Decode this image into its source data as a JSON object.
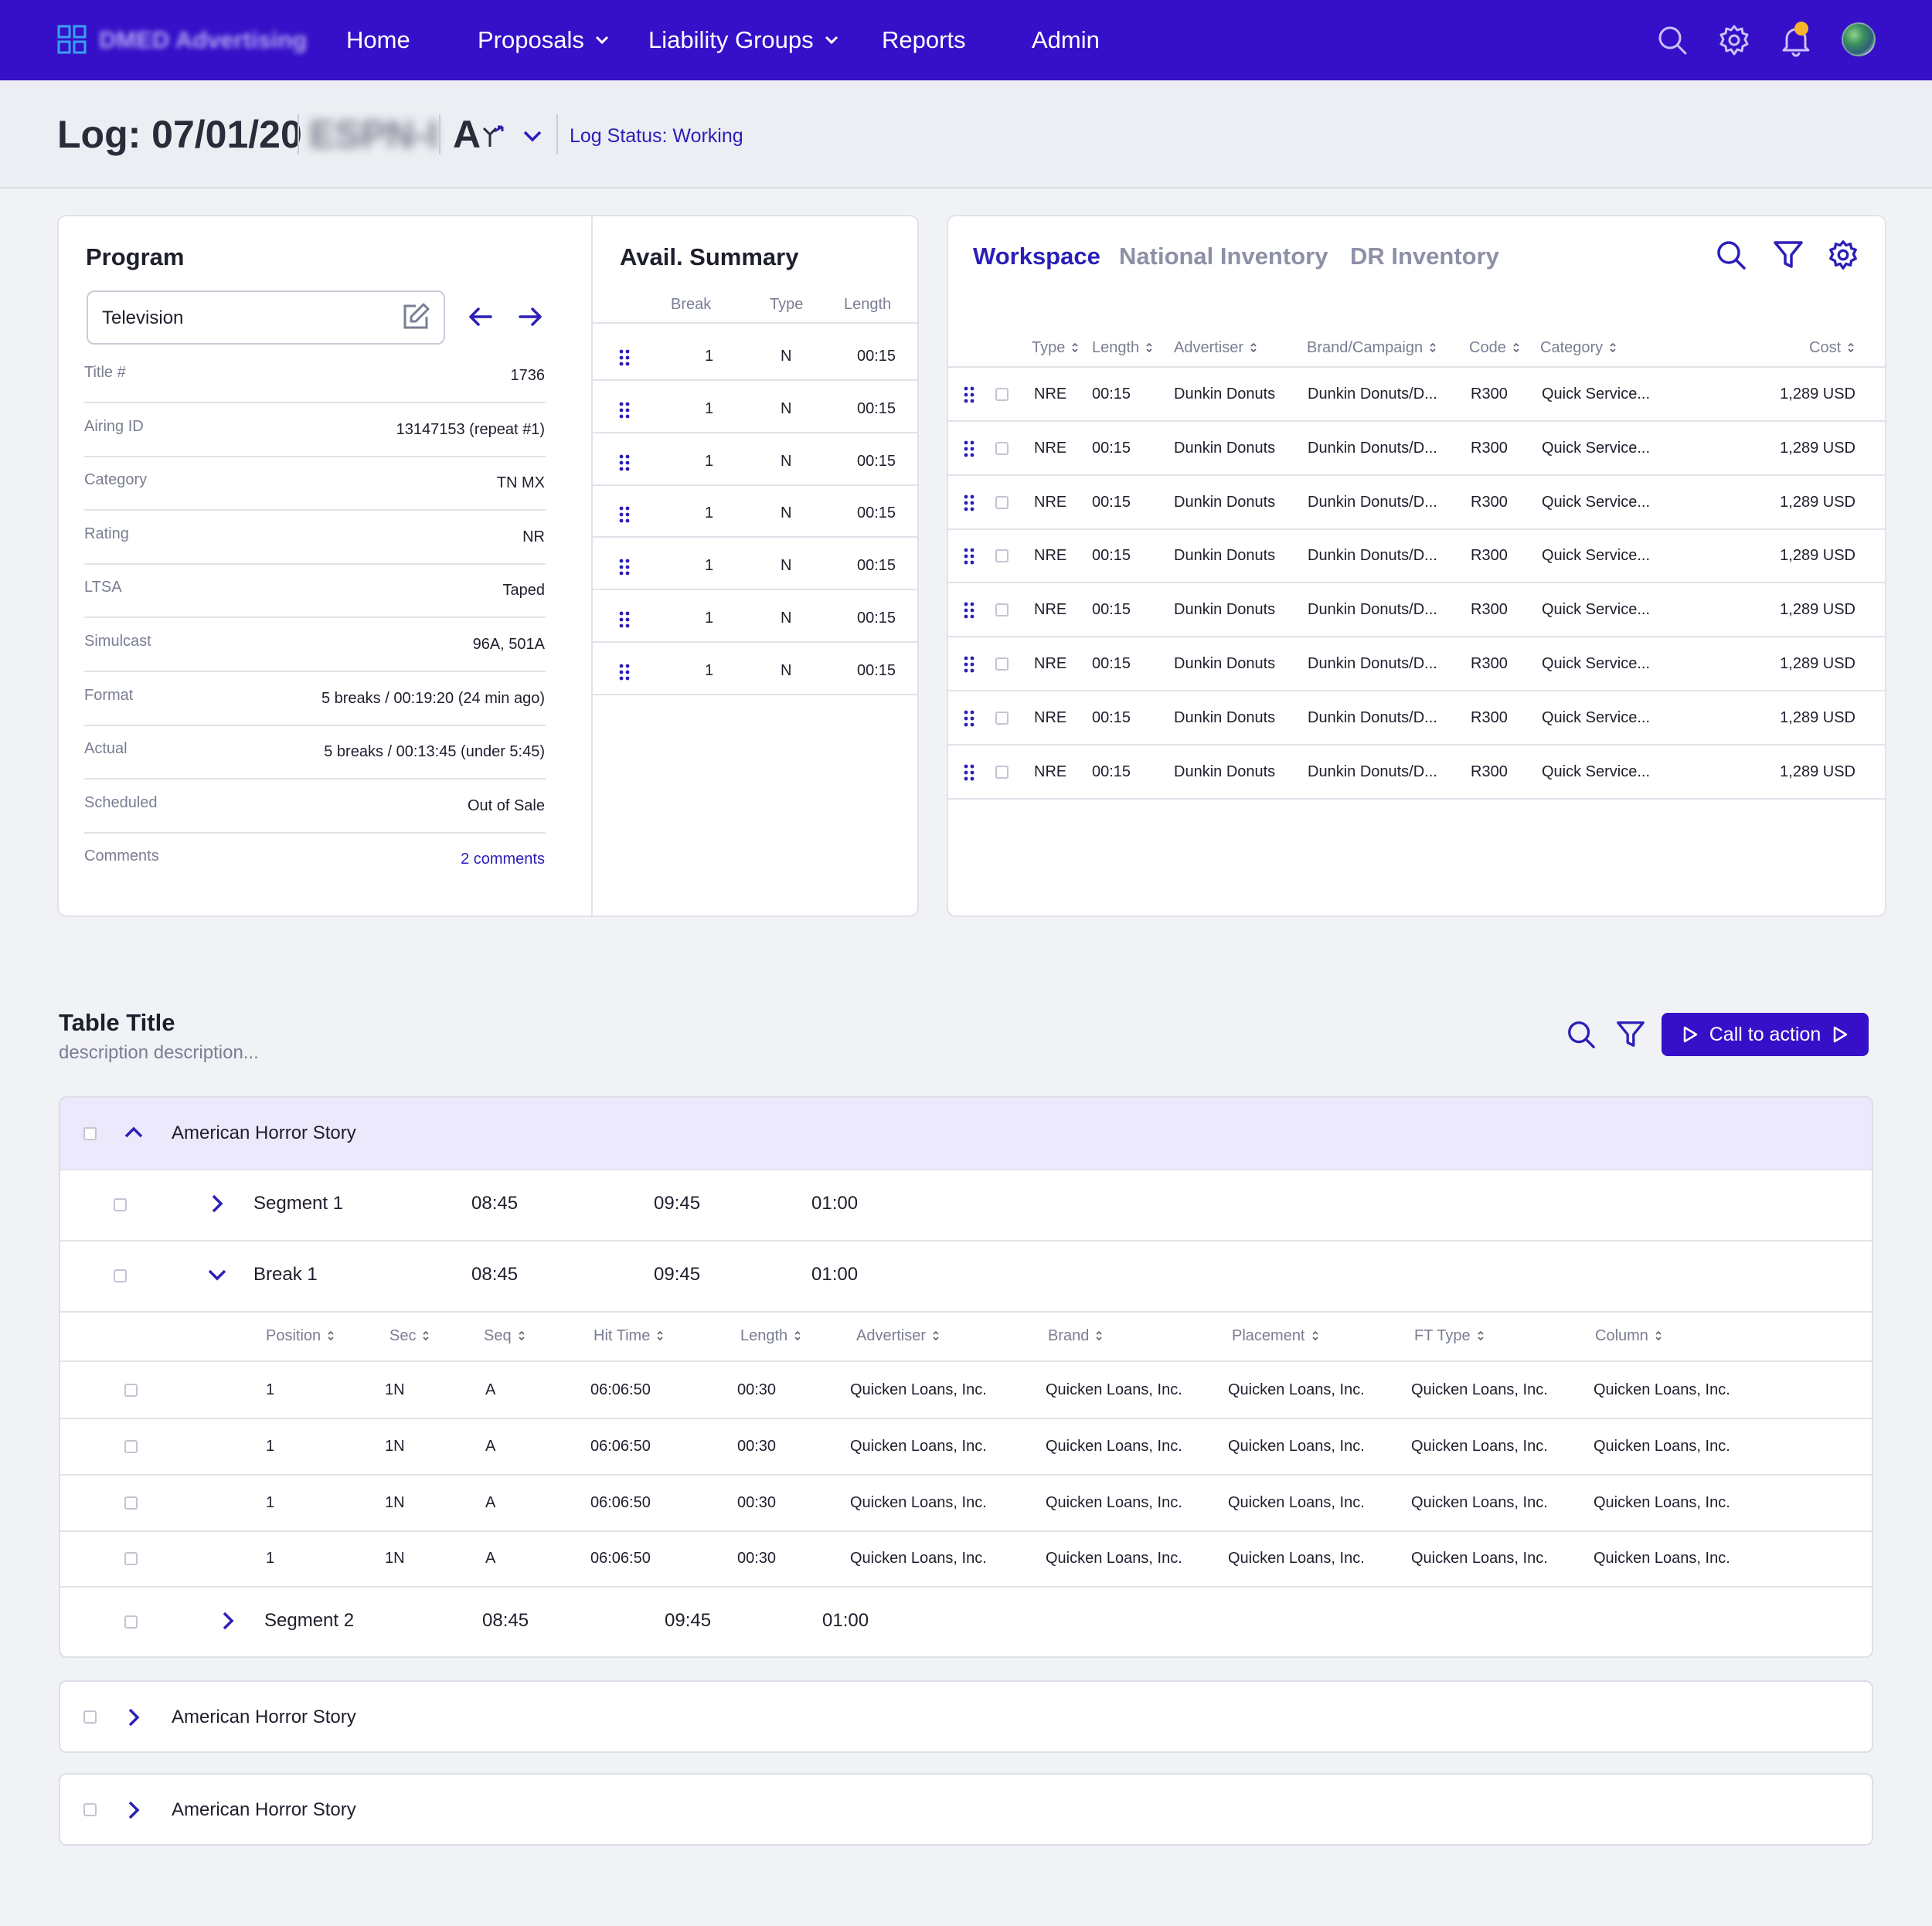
{
  "nav": {
    "brand": "DMED Advertising",
    "items": [
      {
        "label": "Home"
      },
      {
        "label": "Proposals"
      },
      {
        "label": "Liability Groups"
      },
      {
        "label": "Reports"
      },
      {
        "label": "Admin"
      }
    ],
    "icons": [
      "search-icon",
      "gear-icon",
      "bell-icon",
      "avatar"
    ],
    "notification_dot_color": "#f7b52c"
  },
  "log": {
    "title": "Log: 07/01/20",
    "station": "ESPN-I",
    "lang": "A",
    "status": "Log Status: Working"
  },
  "program": {
    "title": "Program",
    "input_value": "Television",
    "rows": [
      {
        "label": "Title #",
        "value": "1736"
      },
      {
        "label": "Airing ID",
        "value": "13147153 (repeat #1)"
      },
      {
        "label": "Category",
        "value": "TN MX"
      },
      {
        "label": "Rating",
        "value": "NR"
      },
      {
        "label": "LTSA",
        "value": "Taped"
      },
      {
        "label": "Simulcast",
        "value": "96A, 501A"
      },
      {
        "label": "Format",
        "value": "5 breaks / 00:19:20 (24 min ago)"
      },
      {
        "label": "Actual",
        "value": "5 breaks / 00:13:45 (under 5:45)"
      },
      {
        "label": "Scheduled",
        "value": "Out of Sale"
      },
      {
        "label": "Comments",
        "value": "2 comments"
      }
    ]
  },
  "avail": {
    "title": "Avail. Summary",
    "headers": [
      "Break",
      "Type",
      "Length"
    ],
    "rows": [
      {
        "break": "1",
        "type": "N",
        "length": "00:15"
      },
      {
        "break": "1",
        "type": "N",
        "length": "00:15"
      },
      {
        "break": "1",
        "type": "N",
        "length": "00:15"
      },
      {
        "break": "1",
        "type": "N",
        "length": "00:15"
      },
      {
        "break": "1",
        "type": "N",
        "length": "00:15"
      },
      {
        "break": "1",
        "type": "N",
        "length": "00:15"
      },
      {
        "break": "1",
        "type": "N",
        "length": "00:15"
      }
    ]
  },
  "workspace": {
    "tabs": [
      "Workspace",
      "National Inventory",
      "DR Inventory"
    ],
    "active_tab": "Workspace",
    "headers": [
      "Type",
      "Length",
      "Advertiser",
      "Brand/Campaign",
      "Code",
      "Category",
      "Cost"
    ],
    "rows": [
      {
        "type": "NRE",
        "length": "00:15",
        "advertiser": "Dunkin Donuts",
        "brand": "Dunkin Donuts/D...",
        "code": "R300",
        "category": "Quick Service...",
        "cost": "1,289 USD"
      },
      {
        "type": "NRE",
        "length": "00:15",
        "advertiser": "Dunkin Donuts",
        "brand": "Dunkin Donuts/D...",
        "code": "R300",
        "category": "Quick Service...",
        "cost": "1,289 USD"
      },
      {
        "type": "NRE",
        "length": "00:15",
        "advertiser": "Dunkin Donuts",
        "brand": "Dunkin Donuts/D...",
        "code": "R300",
        "category": "Quick Service...",
        "cost": "1,289 USD"
      },
      {
        "type": "NRE",
        "length": "00:15",
        "advertiser": "Dunkin Donuts",
        "brand": "Dunkin Donuts/D...",
        "code": "R300",
        "category": "Quick Service...",
        "cost": "1,289 USD"
      },
      {
        "type": "NRE",
        "length": "00:15",
        "advertiser": "Dunkin Donuts",
        "brand": "Dunkin Donuts/D...",
        "code": "R300",
        "category": "Quick Service...",
        "cost": "1,289 USD"
      },
      {
        "type": "NRE",
        "length": "00:15",
        "advertiser": "Dunkin Donuts",
        "brand": "Dunkin Donuts/D...",
        "code": "R300",
        "category": "Quick Service...",
        "cost": "1,289 USD"
      },
      {
        "type": "NRE",
        "length": "00:15",
        "advertiser": "Dunkin Donuts",
        "brand": "Dunkin Donuts/D...",
        "code": "R300",
        "category": "Quick Service...",
        "cost": "1,289 USD"
      },
      {
        "type": "NRE",
        "length": "00:15",
        "advertiser": "Dunkin Donuts",
        "brand": "Dunkin Donuts/D...",
        "code": "R300",
        "category": "Quick Service...",
        "cost": "1,289 USD"
      }
    ]
  },
  "table": {
    "title": "Table Title",
    "description": "description description...",
    "cta": "Call to action",
    "groups": [
      {
        "name": "American Horror Story",
        "expanded": true,
        "segment1": {
          "name": "Segment 1",
          "start": "08:45",
          "end": "09:45",
          "length": "01:00"
        },
        "break1": {
          "name": "Break 1",
          "start": "08:45",
          "end": "09:45",
          "length": "01:00"
        },
        "break_headers": [
          "Position",
          "Sec",
          "Seq",
          "Hit Time",
          "Length",
          "Advertiser",
          "Brand",
          "Placement",
          "FT Type",
          "Column"
        ],
        "break_rows": [
          [
            "1",
            "1N",
            "A",
            "06:06:50",
            "00:30",
            "Quicken Loans, Inc.",
            "Quicken Loans, Inc.",
            "Quicken Loans, Inc.",
            "Quicken Loans, Inc.",
            "Quicken Loans, Inc."
          ],
          [
            "1",
            "1N",
            "A",
            "06:06:50",
            "00:30",
            "Quicken Loans, Inc.",
            "Quicken Loans, Inc.",
            "Quicken Loans, Inc.",
            "Quicken Loans, Inc.",
            "Quicken Loans, Inc."
          ],
          [
            "1",
            "1N",
            "A",
            "06:06:50",
            "00:30",
            "Quicken Loans, Inc.",
            "Quicken Loans, Inc.",
            "Quicken Loans, Inc.",
            "Quicken Loans, Inc.",
            "Quicken Loans, Inc."
          ],
          [
            "1",
            "1N",
            "A",
            "06:06:50",
            "00:30",
            "Quicken Loans, Inc.",
            "Quicken Loans, Inc.",
            "Quicken Loans, Inc.",
            "Quicken Loans, Inc.",
            "Quicken Loans, Inc."
          ]
        ],
        "segment2": {
          "name": "Segment 2",
          "start": "08:45",
          "end": "09:45",
          "length": "01:00"
        }
      },
      {
        "name": "American Horror Story",
        "expanded": false
      },
      {
        "name": "American Horror Story",
        "expanded": false
      }
    ]
  },
  "colors": {
    "primary": "#3510c8",
    "link": "#2b1fb8",
    "muted": "#7a7e92",
    "group_highlight": "#ebe9fb"
  }
}
